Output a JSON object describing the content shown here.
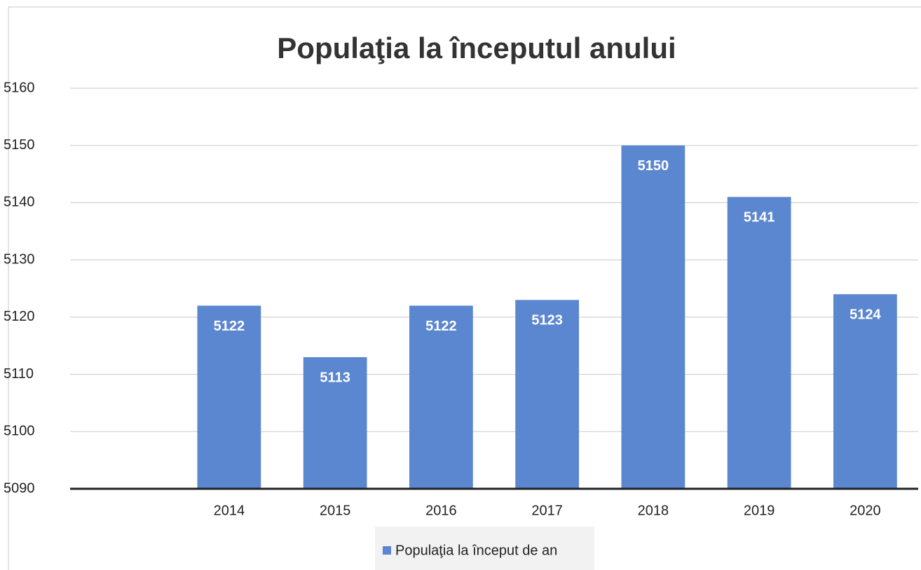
{
  "chart_data": {
    "type": "bar",
    "title": "Populaţia la începutul anului",
    "categories": [
      null,
      "2014",
      "2015",
      "2016",
      "2017",
      "2018",
      "2019",
      "2020"
    ],
    "series": [
      {
        "name": "Populaţia la început de an",
        "color": "#5b86d0",
        "values": [
          null,
          5122,
          5113,
          5122,
          5123,
          5150,
          5141,
          5124
        ]
      }
    ],
    "ylim": [
      5090,
      5160
    ],
    "yticks": [
      5090,
      5100,
      5110,
      5120,
      5130,
      5140,
      5150,
      5160
    ],
    "grid": true,
    "legend": "bottom"
  }
}
